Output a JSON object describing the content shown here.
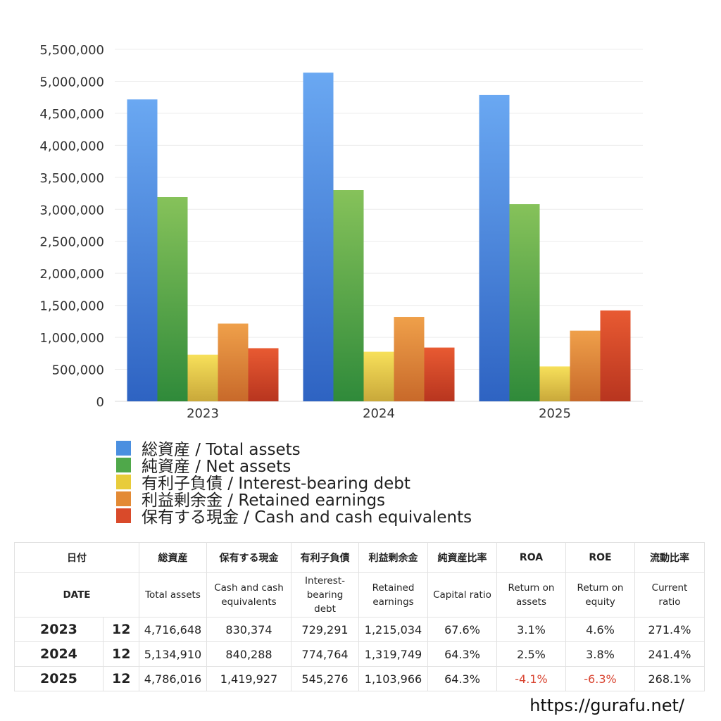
{
  "chart_data": {
    "type": "bar",
    "categories": [
      "2023",
      "2024",
      "2025"
    ],
    "series": [
      {
        "name": "総資産 / Total assets",
        "values": [
          4716648,
          5134910,
          4786016
        ]
      },
      {
        "name": "純資産 / Net assets",
        "values": [
          3190000,
          3300000,
          3080000
        ]
      },
      {
        "name": "有利子負債 / Interest-bearing debt",
        "values": [
          729291,
          774764,
          545276
        ]
      },
      {
        "name": "利益剰余金 / Retained earnings",
        "values": [
          1215034,
          1319749,
          1103966
        ]
      },
      {
        "name": "保有する現金 /  Cash and cash equivalents",
        "values": [
          830374,
          840288,
          1419927
        ]
      }
    ],
    "ylim": [
      0,
      5500000
    ],
    "yticks": [
      "0",
      "500,000",
      "1,000,000",
      "1,500,000",
      "2,000,000",
      "2,500,000",
      "3,000,000",
      "3,500,000",
      "4,000,000",
      "4,500,000",
      "5,000,000",
      "5,500,000"
    ],
    "grid": true,
    "legend_position": "bottom",
    "colors": [
      "#4a8fe0",
      "#4fa84a",
      "#e8cc3a",
      "#e38a35",
      "#d94a2a"
    ]
  },
  "table": {
    "headers_ja": [
      "日付",
      "総資産",
      "保有する現金",
      "有利子負債",
      "利益剰余金",
      "純資産比率",
      "ROA",
      "ROE",
      "流動比率"
    ],
    "headers_en": [
      "DATE",
      "Total assets",
      "Cash and cash equivalents",
      "Interest-bearing debt",
      "Retained earnings",
      "Capital ratio",
      "Return on assets",
      "Return on equity",
      "Current ratio"
    ],
    "rows": [
      {
        "year": "2023",
        "month": "12",
        "total": "4,716,648",
        "cash": "830,374",
        "debt": "729,291",
        "retained": "1,215,034",
        "capital": "67.6%",
        "roa": "3.1%",
        "roe": "4.6%",
        "current": "271.4%"
      },
      {
        "year": "2024",
        "month": "12",
        "total": "5,134,910",
        "cash": "840,288",
        "debt": "774,764",
        "retained": "1,319,749",
        "capital": "64.3%",
        "roa": "2.5%",
        "roe": "3.8%",
        "current": "241.4%"
      },
      {
        "year": "2025",
        "month": "12",
        "total": "4,786,016",
        "cash": "1,419,927",
        "debt": "545,276",
        "retained": "1,103,966",
        "capital": "64.3%",
        "roa": "-4.1%",
        "roe": "-6.3%",
        "current": "268.1%"
      }
    ]
  },
  "footer": {
    "url": "https://gurafu.net/"
  }
}
